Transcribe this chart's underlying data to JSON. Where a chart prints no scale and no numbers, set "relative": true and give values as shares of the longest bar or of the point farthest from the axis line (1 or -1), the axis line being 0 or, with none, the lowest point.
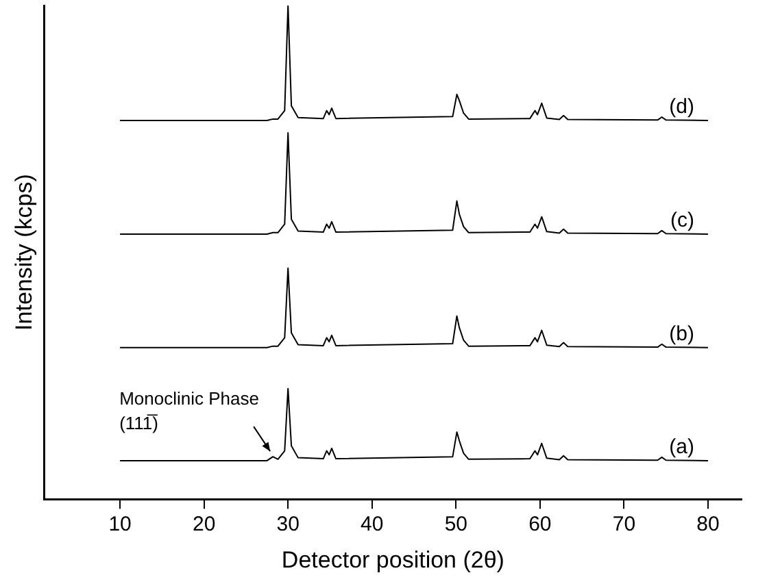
{
  "chart_data": {
    "type": "line",
    "xlabel": "Detector position (2θ)",
    "ylabel": "Intensity (kcps)",
    "relative": true,
    "grid": false,
    "legend": false,
    "marker": "none",
    "line_style": "solid",
    "xlim": [
      1,
      84
    ],
    "xticks": [
      10,
      20,
      30,
      40,
      50,
      60,
      70,
      80
    ],
    "x": [
      10,
      27.5,
      28.2,
      28.8,
      29.6,
      30.0,
      30.4,
      31.2,
      34.2,
      34.6,
      34.9,
      35.2,
      35.7,
      49.6,
      50.1,
      50.4,
      50.9,
      51.5,
      58.8,
      59.4,
      59.7,
      60.2,
      60.8,
      62.3,
      62.8,
      63.3,
      74.0,
      74.5,
      75.0,
      80
    ],
    "series": [
      {
        "name": "(a)",
        "color": "#000000",
        "values": [
          0.078,
          0.078,
          0.086,
          0.081,
          0.098,
          0.224,
          0.108,
          0.084,
          0.082,
          0.098,
          0.09,
          0.103,
          0.082,
          0.086,
          0.136,
          0.118,
          0.093,
          0.081,
          0.082,
          0.098,
          0.09,
          0.113,
          0.083,
          0.08,
          0.088,
          0.08,
          0.079,
          0.085,
          0.079,
          0.078
        ]
      },
      {
        "name": "(b)",
        "color": "#000000",
        "values": [
          0.307,
          0.307,
          0.31,
          0.31,
          0.327,
          0.468,
          0.337,
          0.313,
          0.311,
          0.327,
          0.319,
          0.332,
          0.311,
          0.315,
          0.371,
          0.347,
          0.322,
          0.31,
          0.311,
          0.327,
          0.319,
          0.342,
          0.312,
          0.309,
          0.317,
          0.309,
          0.308,
          0.314,
          0.308,
          0.307
        ]
      },
      {
        "name": "(c)",
        "color": "#000000",
        "values": [
          0.537,
          0.537,
          0.54,
          0.54,
          0.557,
          0.742,
          0.567,
          0.543,
          0.541,
          0.557,
          0.549,
          0.562,
          0.541,
          0.545,
          0.604,
          0.577,
          0.552,
          0.54,
          0.541,
          0.557,
          0.549,
          0.572,
          0.542,
          0.539,
          0.547,
          0.539,
          0.538,
          0.544,
          0.538,
          0.537
        ]
      },
      {
        "name": "(d)",
        "color": "#000000",
        "values": [
          0.767,
          0.767,
          0.77,
          0.77,
          0.787,
          1,
          0.797,
          0.773,
          0.771,
          0.787,
          0.779,
          0.792,
          0.771,
          0.775,
          0.82,
          0.807,
          0.782,
          0.77,
          0.771,
          0.787,
          0.779,
          0.802,
          0.772,
          0.769,
          0.777,
          0.769,
          0.768,
          0.774,
          0.768,
          0.767
        ]
      }
    ],
    "annotations": [
      {
        "text": "Monoclinic Phase\n(111̅)",
        "x": 28.2,
        "y": 0.086
      }
    ]
  }
}
